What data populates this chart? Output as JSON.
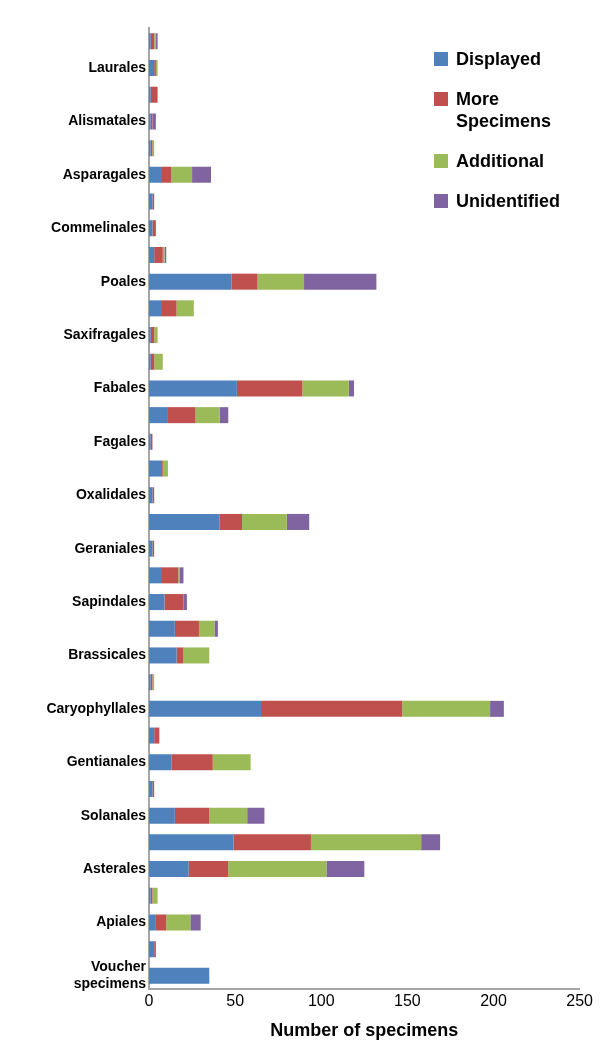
{
  "chart_data": {
    "type": "bar",
    "orientation": "horizontal",
    "stacked": true,
    "xlabel": "Number of specimens",
    "categories": [
      null,
      "Laurales",
      null,
      "Alismatales",
      null,
      "Asparagales",
      null,
      "Commelinales",
      null,
      "Poales",
      null,
      "Saxifragales",
      null,
      "Fabales",
      null,
      "Fagales",
      null,
      "Oxalidales",
      null,
      "Geraniales",
      null,
      "Sapindales",
      null,
      "Brassicales",
      null,
      "Caryophyllales",
      null,
      "Gentianales",
      null,
      "Solanales",
      null,
      "Asterales",
      null,
      "Apiales",
      null,
      "Voucher specimens"
    ],
    "series": [
      {
        "name": "Displayed",
        "color": "#4f81bd",
        "values": [
          1,
          3,
          1,
          1,
          1,
          7,
          2,
          2,
          3,
          48,
          7,
          1,
          1,
          51,
          11,
          1,
          7,
          2,
          41,
          2,
          7,
          9,
          15,
          16,
          1,
          65,
          3,
          13,
          2,
          15,
          49,
          23,
          1,
          4,
          3,
          35
        ]
      },
      {
        "name": "More Specimens",
        "color": "#c0504d",
        "values": [
          2,
          1,
          4,
          1,
          1,
          6,
          1,
          2,
          5,
          15,
          9,
          2,
          2,
          38,
          16,
          1,
          1,
          1,
          13,
          1,
          10,
          11,
          14,
          4,
          1,
          82,
          3,
          24,
          1,
          20,
          45,
          23,
          1,
          6,
          1,
          0
        ]
      },
      {
        "name": "Additional",
        "color": "#9bbb59",
        "values": [
          1,
          1,
          0,
          0,
          1,
          12,
          0,
          0,
          1,
          27,
          10,
          2,
          5,
          27,
          14,
          0,
          3,
          0,
          26,
          0,
          1,
          0,
          9,
          15,
          1,
          51,
          0,
          22,
          0,
          22,
          64,
          57,
          3,
          14,
          0,
          0
        ]
      },
      {
        "name": "Unidentified",
        "color": "#8064a2",
        "values": [
          1,
          0,
          0,
          2,
          0,
          11,
          0,
          0,
          1,
          42,
          0,
          0,
          0,
          3,
          5,
          0,
          0,
          0,
          13,
          0,
          2,
          2,
          2,
          0,
          0,
          8,
          0,
          0,
          0,
          10,
          11,
          22,
          0,
          6,
          0,
          0
        ]
      }
    ],
    "xlim": [
      0,
      250
    ],
    "xticks": [
      0,
      50,
      100,
      150,
      200,
      250
    ],
    "grid": false,
    "legend": "top right"
  }
}
